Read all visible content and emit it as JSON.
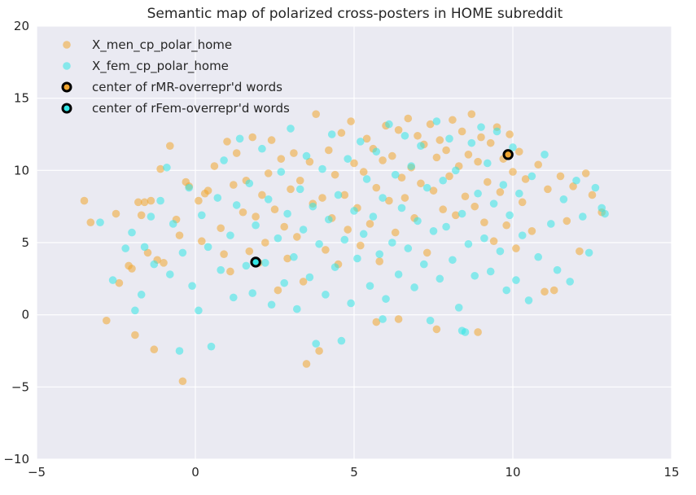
{
  "chart_data": {
    "type": "scatter",
    "title": "Semantic map of polarized cross-posters in HOME subreddit",
    "xlabel": "",
    "ylabel": "",
    "xlim": [
      -5,
      15
    ],
    "ylim": [
      -10,
      20
    ],
    "x_ticks": [
      -5,
      0,
      5,
      10,
      15
    ],
    "y_ticks": [
      -10,
      -5,
      0,
      5,
      10,
      15,
      20
    ],
    "x_tick_labels": [
      "−5",
      "0",
      "5",
      "10",
      "15"
    ],
    "y_tick_labels": [
      "−10",
      "−5",
      "0",
      "5",
      "10",
      "15",
      "20"
    ],
    "grid": true,
    "legend_position": "top-left",
    "background_color": "#eaeaf2",
    "series": [
      {
        "name": "X_men_cp_polar_home",
        "color": "#f0a530",
        "points": [
          [
            -3.5,
            7.9
          ],
          [
            -3.3,
            6.4
          ],
          [
            -2.8,
            -0.4
          ],
          [
            -2.5,
            7.0
          ],
          [
            -2.4,
            2.2
          ],
          [
            -2.1,
            3.4
          ],
          [
            -2.0,
            3.2
          ],
          [
            -1.9,
            -1.4
          ],
          [
            -1.8,
            7.8
          ],
          [
            -1.7,
            6.9
          ],
          [
            -1.6,
            7.8
          ],
          [
            -1.5,
            4.3
          ],
          [
            -1.4,
            7.9
          ],
          [
            -1.3,
            -2.4
          ],
          [
            -1.2,
            3.8
          ],
          [
            -1.1,
            10.1
          ],
          [
            -1.0,
            3.6
          ],
          [
            -0.8,
            11.7
          ],
          [
            -0.6,
            6.6
          ],
          [
            -0.5,
            5.5
          ],
          [
            -0.4,
            -4.6
          ],
          [
            -0.3,
            9.2
          ],
          [
            -0.2,
            8.9
          ],
          [
            0.1,
            7.9
          ],
          [
            0.2,
            5.1
          ],
          [
            0.3,
            8.4
          ],
          [
            0.4,
            8.6
          ],
          [
            0.6,
            10.3
          ],
          [
            0.8,
            6.0
          ],
          [
            0.9,
            4.2
          ],
          [
            1.0,
            12.0
          ],
          [
            1.1,
            3.0
          ],
          [
            1.2,
            9.0
          ],
          [
            1.3,
            11.2
          ],
          [
            1.5,
            7.1
          ],
          [
            1.6,
            9.3
          ],
          [
            1.7,
            4.4
          ],
          [
            1.8,
            12.3
          ],
          [
            1.9,
            6.8
          ],
          [
            2.0,
            3.6
          ],
          [
            2.1,
            8.3
          ],
          [
            2.2,
            5.0
          ],
          [
            2.3,
            9.8
          ],
          [
            2.4,
            12.1
          ],
          [
            2.5,
            7.3
          ],
          [
            2.6,
            1.7
          ],
          [
            2.7,
            10.8
          ],
          [
            2.8,
            6.1
          ],
          [
            2.9,
            3.9
          ],
          [
            3.0,
            8.7
          ],
          [
            3.1,
            11.2
          ],
          [
            3.2,
            5.4
          ],
          [
            3.3,
            9.3
          ],
          [
            3.4,
            2.3
          ],
          [
            3.5,
            -3.4
          ],
          [
            3.6,
            10.6
          ],
          [
            3.7,
            7.7
          ],
          [
            3.8,
            13.9
          ],
          [
            3.9,
            -2.5
          ],
          [
            4.0,
            8.1
          ],
          [
            4.1,
            4.5
          ],
          [
            4.2,
            11.4
          ],
          [
            4.3,
            6.7
          ],
          [
            4.4,
            9.7
          ],
          [
            4.5,
            3.5
          ],
          [
            4.6,
            12.6
          ],
          [
            4.7,
            8.3
          ],
          [
            4.8,
            5.9
          ],
          [
            4.9,
            13.4
          ],
          [
            5.0,
            10.5
          ],
          [
            5.1,
            7.4
          ],
          [
            5.2,
            4.8
          ],
          [
            5.3,
            9.9
          ],
          [
            5.4,
            12.2
          ],
          [
            5.5,
            6.3
          ],
          [
            5.6,
            11.5
          ],
          [
            5.7,
            8.8
          ],
          [
            5.8,
            3.7
          ],
          [
            5.9,
            10.7
          ],
          [
            6.0,
            13.1
          ],
          [
            6.1,
            7.9
          ],
          [
            6.2,
            11.0
          ],
          [
            6.3,
            5.7
          ],
          [
            6.4,
            12.8
          ],
          [
            6.5,
            9.5
          ],
          [
            6.6,
            8.1
          ],
          [
            6.7,
            13.6
          ],
          [
            6.8,
            10.2
          ],
          [
            6.9,
            6.7
          ],
          [
            7.0,
            12.4
          ],
          [
            7.1,
            9.1
          ],
          [
            7.2,
            11.8
          ],
          [
            7.3,
            4.3
          ],
          [
            7.4,
            13.2
          ],
          [
            7.5,
            8.6
          ],
          [
            7.6,
            10.9
          ],
          [
            7.7,
            12.1
          ],
          [
            7.8,
            7.3
          ],
          [
            7.9,
            11.4
          ],
          [
            8.0,
            9.6
          ],
          [
            8.1,
            13.5
          ],
          [
            8.2,
            6.9
          ],
          [
            8.3,
            10.3
          ],
          [
            8.4,
            12.7
          ],
          [
            8.5,
            8.2
          ],
          [
            8.6,
            11.1
          ],
          [
            8.7,
            13.9
          ],
          [
            8.8,
            7.5
          ],
          [
            8.9,
            10.6
          ],
          [
            9.0,
            12.3
          ],
          [
            9.1,
            6.4
          ],
          [
            9.2,
            9.2
          ],
          [
            9.3,
            11.9
          ],
          [
            9.4,
            5.1
          ],
          [
            9.5,
            13.0
          ],
          [
            9.6,
            8.5
          ],
          [
            9.7,
            10.8
          ],
          [
            9.8,
            6.2
          ],
          [
            9.9,
            12.5
          ],
          [
            10.0,
            9.9
          ],
          [
            10.1,
            4.6
          ],
          [
            10.2,
            11.3
          ],
          [
            10.3,
            7.8
          ],
          [
            10.4,
            9.4
          ],
          [
            10.6,
            5.8
          ],
          [
            10.8,
            10.4
          ],
          [
            11.0,
            1.6
          ],
          [
            11.1,
            8.7
          ],
          [
            11.3,
            1.7
          ],
          [
            11.5,
            9.6
          ],
          [
            11.7,
            6.5
          ],
          [
            11.9,
            8.9
          ],
          [
            12.1,
            4.4
          ],
          [
            12.3,
            9.8
          ],
          [
            12.5,
            8.3
          ],
          [
            12.8,
            7.1
          ],
          [
            8.9,
            -1.2
          ],
          [
            7.6,
            -1.0
          ],
          [
            6.4,
            -0.3
          ],
          [
            5.7,
            -0.5
          ]
        ]
      },
      {
        "name": "X_fem_cp_polar_home",
        "color": "#33e6e6",
        "points": [
          [
            -3.0,
            6.4
          ],
          [
            -2.6,
            2.4
          ],
          [
            -2.2,
            4.6
          ],
          [
            -2.0,
            5.7
          ],
          [
            -1.9,
            0.3
          ],
          [
            -1.7,
            1.4
          ],
          [
            -1.6,
            4.7
          ],
          [
            -1.4,
            6.8
          ],
          [
            -1.3,
            3.5
          ],
          [
            -1.1,
            7.9
          ],
          [
            -0.9,
            10.2
          ],
          [
            -0.8,
            2.8
          ],
          [
            -0.7,
            6.3
          ],
          [
            -0.5,
            -2.5
          ],
          [
            -0.4,
            4.3
          ],
          [
            -0.2,
            8.8
          ],
          [
            -0.1,
            2.0
          ],
          [
            0.1,
            0.3
          ],
          [
            0.2,
            6.9
          ],
          [
            0.4,
            4.7
          ],
          [
            0.5,
            -2.2
          ],
          [
            0.7,
            8.1
          ],
          [
            0.8,
            3.1
          ],
          [
            0.9,
            10.7
          ],
          [
            1.1,
            5.5
          ],
          [
            1.2,
            1.2
          ],
          [
            1.3,
            7.6
          ],
          [
            1.4,
            12.2
          ],
          [
            1.6,
            3.4
          ],
          [
            1.7,
            9.1
          ],
          [
            1.8,
            1.5
          ],
          [
            1.9,
            6.2
          ],
          [
            2.1,
            11.5
          ],
          [
            2.2,
            3.6
          ],
          [
            2.3,
            8.0
          ],
          [
            2.4,
            0.7
          ],
          [
            2.6,
            5.3
          ],
          [
            2.7,
            9.9
          ],
          [
            2.8,
            2.2
          ],
          [
            2.9,
            7.0
          ],
          [
            3.0,
            12.9
          ],
          [
            3.1,
            4.0
          ],
          [
            3.2,
            0.4
          ],
          [
            3.3,
            8.7
          ],
          [
            3.4,
            5.9
          ],
          [
            3.5,
            11.0
          ],
          [
            3.6,
            2.6
          ],
          [
            3.7,
            7.5
          ],
          [
            3.8,
            -2.0
          ],
          [
            3.9,
            4.9
          ],
          [
            4.0,
            10.1
          ],
          [
            4.1,
            1.4
          ],
          [
            4.2,
            6.6
          ],
          [
            4.3,
            12.5
          ],
          [
            4.4,
            3.3
          ],
          [
            4.5,
            8.3
          ],
          [
            4.6,
            -1.8
          ],
          [
            4.7,
            5.2
          ],
          [
            4.8,
            10.8
          ],
          [
            4.9,
            0.8
          ],
          [
            5.0,
            7.2
          ],
          [
            5.1,
            3.9
          ],
          [
            5.2,
            12.0
          ],
          [
            5.3,
            5.6
          ],
          [
            5.4,
            9.4
          ],
          [
            5.5,
            2.0
          ],
          [
            5.6,
            6.8
          ],
          [
            5.7,
            11.3
          ],
          [
            5.8,
            4.2
          ],
          [
            5.9,
            8.1
          ],
          [
            6.0,
            1.1
          ],
          [
            6.1,
            13.2
          ],
          [
            6.2,
            5.0
          ],
          [
            6.3,
            9.7
          ],
          [
            6.4,
            2.8
          ],
          [
            6.5,
            7.4
          ],
          [
            6.6,
            12.4
          ],
          [
            6.7,
            4.6
          ],
          [
            6.8,
            10.3
          ],
          [
            6.9,
            1.9
          ],
          [
            7.0,
            6.5
          ],
          [
            7.1,
            11.7
          ],
          [
            7.2,
            3.5
          ],
          [
            7.3,
            8.8
          ],
          [
            7.4,
            -0.4
          ],
          [
            7.5,
            5.8
          ],
          [
            7.6,
            13.4
          ],
          [
            7.7,
            2.5
          ],
          [
            7.8,
            9.3
          ],
          [
            7.9,
            6.1
          ],
          [
            8.0,
            12.2
          ],
          [
            8.1,
            3.8
          ],
          [
            8.2,
            10.0
          ],
          [
            8.3,
            0.5
          ],
          [
            8.4,
            7.0
          ],
          [
            8.5,
            -1.2
          ],
          [
            8.6,
            4.9
          ],
          [
            8.7,
            11.9
          ],
          [
            8.8,
            2.7
          ],
          [
            8.9,
            8.4
          ],
          [
            9.0,
            13.0
          ],
          [
            9.1,
            5.3
          ],
          [
            9.2,
            10.5
          ],
          [
            9.3,
            3.0
          ],
          [
            9.4,
            7.7
          ],
          [
            9.5,
            12.7
          ],
          [
            9.6,
            4.4
          ],
          [
            9.7,
            9.0
          ],
          [
            9.8,
            1.7
          ],
          [
            9.9,
            6.9
          ],
          [
            10.0,
            11.6
          ],
          [
            10.1,
            2.4
          ],
          [
            10.2,
            8.4
          ],
          [
            10.3,
            5.5
          ],
          [
            10.5,
            1.0
          ],
          [
            10.6,
            9.6
          ],
          [
            10.8,
            4.0
          ],
          [
            11.0,
            11.1
          ],
          [
            11.2,
            6.3
          ],
          [
            11.4,
            3.1
          ],
          [
            11.6,
            8.0
          ],
          [
            11.8,
            2.3
          ],
          [
            12.0,
            9.3
          ],
          [
            12.2,
            6.8
          ],
          [
            12.4,
            4.3
          ],
          [
            12.6,
            8.8
          ],
          [
            12.8,
            7.4
          ],
          [
            12.9,
            7.0
          ],
          [
            8.4,
            -1.1
          ],
          [
            5.9,
            -0.3
          ]
        ]
      },
      {
        "name": "center of rMR-overrepr'd words",
        "color": "#f0a530",
        "edge_color": "#000000",
        "points": [
          [
            9.85,
            11.1
          ]
        ]
      },
      {
        "name": "center of rFem-overrepr'd words",
        "color": "#33e6e6",
        "edge_color": "#000000",
        "points": [
          [
            1.9,
            3.65
          ]
        ]
      }
    ]
  }
}
